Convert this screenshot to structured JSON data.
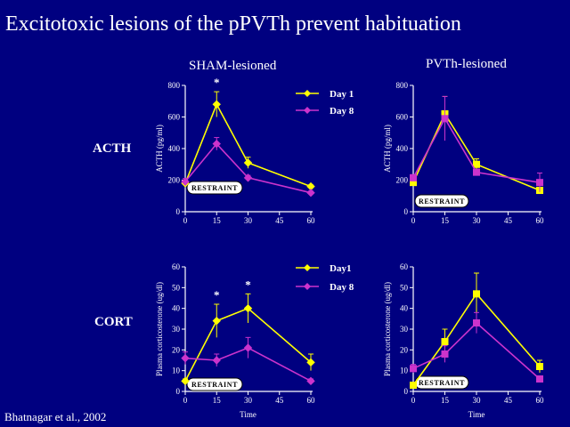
{
  "title": "Excitotoxic lesions of the pPVTh prevent habituation",
  "columns": {
    "left": "SHAM-lesioned",
    "right": "PVTh-lesioned"
  },
  "rows": {
    "top": "ACTH",
    "bottom": "CORT"
  },
  "citation": "Bhatnagar et al., 2002",
  "restraint_label": "RESTRAINT",
  "colors": {
    "background": "#000080",
    "day1": "#ffff00",
    "day8": "#cc33cc",
    "axis": "#ffffff"
  },
  "chart_data": [
    {
      "id": "acth-sham",
      "type": "line",
      "ylabel": "ACTH (pg/ml)",
      "xlabel": "",
      "x": [
        0,
        15,
        30,
        45,
        60
      ],
      "xticks": [
        "0",
        "15",
        "30",
        "45",
        "60"
      ],
      "yticks": [
        "0",
        "200",
        "400",
        "600",
        "800"
      ],
      "ylim": [
        0,
        800
      ],
      "xlim": [
        0,
        60
      ],
      "marker": "diamond",
      "legend": [
        "Day 1",
        "Day 8"
      ],
      "annotations": [
        {
          "text": "*",
          "x": 15
        }
      ],
      "series": [
        {
          "name": "Day 1",
          "x": [
            0,
            15,
            30,
            60
          ],
          "values": [
            180,
            680,
            310,
            160
          ],
          "errors": [
            20,
            80,
            35,
            10
          ]
        },
        {
          "name": "Day 8",
          "x": [
            0,
            15,
            30,
            60
          ],
          "values": [
            190,
            430,
            215,
            120
          ],
          "errors": [
            20,
            40,
            15,
            10
          ]
        }
      ]
    },
    {
      "id": "acth-pvth",
      "type": "line",
      "ylabel": "ACTH (pg/ml)",
      "xlabel": "",
      "x": [
        0,
        15,
        30,
        45,
        60
      ],
      "xticks": [
        "0",
        "15",
        "30",
        "45",
        "60"
      ],
      "yticks": [
        "0",
        "200",
        "400",
        "600",
        "800"
      ],
      "ylim": [
        0,
        800
      ],
      "xlim": [
        0,
        60
      ],
      "marker": "square",
      "legend": [],
      "annotations": [],
      "series": [
        {
          "name": "",
          "x": [
            0,
            15,
            30,
            60
          ],
          "values": [
            185,
            620,
            300,
            135
          ],
          "errors": [
            20,
            110,
            35,
            15
          ]
        },
        {
          "name": "",
          "x": [
            0,
            15,
            30,
            60
          ],
          "values": [
            215,
            590,
            250,
            185
          ],
          "errors": [
            20,
            140,
            20,
            60
          ]
        }
      ]
    },
    {
      "id": "cort-sham",
      "type": "line",
      "ylabel": "Plasma corticosterone (ug/dl)",
      "xlabel": "Time",
      "x": [
        0,
        15,
        30,
        45,
        60
      ],
      "xticks": [
        "0",
        "15",
        "30",
        "45",
        "60"
      ],
      "yticks": [
        "0",
        "10",
        "20",
        "30",
        "40",
        "50",
        "60"
      ],
      "ylim": [
        0,
        60
      ],
      "xlim": [
        0,
        60
      ],
      "marker": "diamond",
      "legend": [
        "Day1",
        "Day 8"
      ],
      "annotations": [
        {
          "text": "*",
          "x": 15
        },
        {
          "text": "*",
          "x": 30
        }
      ],
      "series": [
        {
          "name": "Day1",
          "x": [
            0,
            15,
            30,
            60
          ],
          "values": [
            5,
            34,
            40,
            14
          ],
          "errors": [
            1,
            8,
            7,
            4
          ]
        },
        {
          "name": "Day 8",
          "x": [
            0,
            15,
            30,
            60
          ],
          "values": [
            16,
            15,
            21,
            5
          ],
          "errors": [
            3,
            3,
            5,
            1
          ]
        }
      ]
    },
    {
      "id": "cort-pvth",
      "type": "line",
      "ylabel": "Plasma corticosterone (ug/dl)",
      "xlabel": "Time",
      "x": [
        0,
        15,
        30,
        45,
        60
      ],
      "xticks": [
        "0",
        "15",
        "30",
        "45",
        "60"
      ],
      "yticks": [
        "0",
        "10",
        "20",
        "30",
        "40",
        "50",
        "60"
      ],
      "ylim": [
        0,
        60
      ],
      "xlim": [
        0,
        60
      ],
      "marker": "square",
      "legend": [],
      "annotations": [],
      "series": [
        {
          "name": "",
          "x": [
            0,
            15,
            30,
            60
          ],
          "values": [
            3,
            24,
            47,
            12
          ],
          "errors": [
            1,
            6,
            10,
            3
          ]
        },
        {
          "name": "",
          "x": [
            0,
            15,
            30,
            60
          ],
          "values": [
            11,
            18,
            33,
            6
          ],
          "errors": [
            2,
            4,
            5,
            1
          ]
        }
      ]
    }
  ]
}
